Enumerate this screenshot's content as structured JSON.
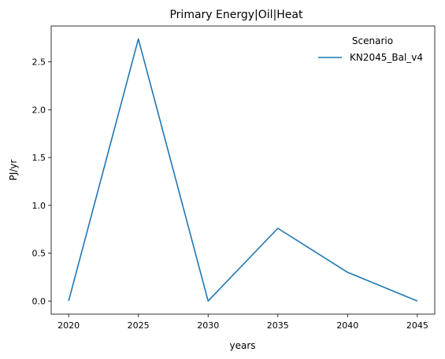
{
  "chart_data": {
    "type": "line",
    "title": "Primary Energy|Oil|Heat",
    "xlabel": "years",
    "ylabel": "PJ/yr",
    "x": [
      2020,
      2025,
      2030,
      2035,
      2040,
      2045
    ],
    "x_ticks": [
      "2020",
      "2025",
      "2030",
      "2035",
      "2040",
      "2045"
    ],
    "y_ticks": [
      "0.0",
      "0.5",
      "1.0",
      "1.5",
      "2.0",
      "2.5"
    ],
    "xlim": [
      2018.75,
      2046.25
    ],
    "ylim": [
      -0.137,
      2.875
    ],
    "grid": false,
    "legend": {
      "title": "Scenario",
      "placement": "top-right"
    },
    "series": [
      {
        "name": "KN2045_Bal_v4",
        "color": "#1f77b4",
        "values": [
          0.0,
          2.74,
          0.0,
          0.76,
          0.3,
          0.0
        ]
      }
    ]
  }
}
